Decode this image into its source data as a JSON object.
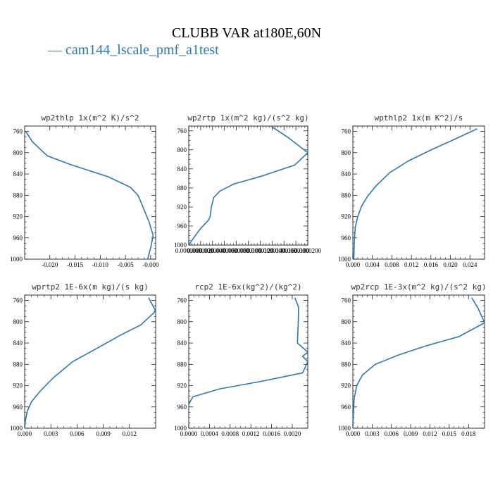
{
  "title": "CLUBB VAR at180E,60N",
  "legend": {
    "label": "— cam144_lscale_pmf_a1test",
    "color": "#2a7ab0"
  },
  "chart_data": [
    {
      "type": "line",
      "title": "wp2thlp   1x(m^2 K)/s^2",
      "xlim": [
        -0.025,
        0.001
      ],
      "ylim": [
        1000,
        750
      ],
      "xticks": [
        -0.02,
        -0.015,
        -0.01,
        -0.005,
        -0.0
      ],
      "xtick_labels": [
        "-0.020",
        "-0.015",
        "-0.010",
        "-0.005",
        "-0.000"
      ],
      "yticks": [
        760,
        800,
        840,
        880,
        920,
        960,
        1000
      ],
      "ytick_labels": [
        "760",
        "800",
        "840",
        "880",
        "920",
        "960",
        "1000"
      ],
      "series": [
        {
          "x": [
            -0.0248,
            -0.0234,
            -0.0205,
            -0.016,
            -0.0085,
            -0.004,
            -0.0025,
            -0.0016,
            -0.0003,
            0.0005,
            0.0001,
            -0.0006
          ],
          "y": [
            760,
            780,
            806,
            822,
            845,
            865,
            880,
            900,
            930,
            955,
            975,
            1000
          ]
        }
      ]
    },
    {
      "type": "line",
      "title": "wp2rtp   1x(m^2 kg)/(s^2 kg)",
      "xlim": [
        0.0,
        2e-05
      ],
      "ylim": [
        1000,
        750
      ],
      "xticks": [
        0.0,
        2e-06,
        4e-06,
        6e-06,
        8e-06,
        1e-05,
        1.2e-05,
        1.4e-05,
        1.6e-05,
        1.8e-05,
        2e-05
      ],
      "xtick_labels": [
        "0.0000000",
        "0.0000020",
        "0.0000040",
        "0.0000060",
        "0.0000080",
        "0.0000100",
        "0.0000120",
        "0.0000140",
        "0.0000160",
        "0.0000180",
        "0.0000200"
      ],
      "yticks": [
        760,
        800,
        840,
        880,
        920,
        960,
        1000
      ],
      "ytick_labels": [
        "760",
        "800",
        "840",
        "880",
        "920",
        "960",
        "1000"
      ],
      "series": [
        {
          "x": [
            1.38e-05,
            1.68e-05,
            2e-05,
            1.78e-05,
            1.2e-05,
            7.5e-06,
            5.2e-06,
            4.2e-06,
            3.8e-06,
            3.6e-06,
            3.3e-06,
            2e-06,
            8e-07,
            0.0
          ],
          "y": [
            750,
            775,
            806,
            832,
            856,
            872,
            887,
            900,
            920,
            940,
            948,
            965,
            985,
            1000
          ]
        }
      ]
    },
    {
      "type": "line",
      "title": "wpthlp2   1x(m K^2)/s",
      "xlim": [
        0.0,
        0.027
      ],
      "ylim": [
        1000,
        750
      ],
      "xticks": [
        0.0,
        0.004,
        0.008,
        0.012,
        0.016,
        0.02,
        0.024
      ],
      "xtick_labels": [
        "0.000",
        "0.004",
        "0.008",
        "0.012",
        "0.016",
        "0.020",
        "0.024"
      ],
      "yticks": [
        760,
        800,
        840,
        880,
        920,
        960,
        1000
      ],
      "ytick_labels": [
        "760",
        "800",
        "840",
        "880",
        "920",
        "960",
        "1000"
      ],
      "series": [
        {
          "x": [
            0.0255,
            0.022,
            0.016,
            0.0115,
            0.0075,
            0.0048,
            0.003,
            0.0018,
            0.001,
            0.0005,
            0.0003,
            0.0002
          ],
          "y": [
            755,
            770,
            795,
            815,
            838,
            862,
            882,
            900,
            920,
            940,
            965,
            1000
          ]
        }
      ]
    },
    {
      "type": "line",
      "title": "wprtp2   1E-6x(m kg)/(s kg)",
      "xlim": [
        0.0,
        0.015
      ],
      "ylim": [
        1000,
        750
      ],
      "xticks": [
        0.0,
        0.003,
        0.006,
        0.009,
        0.012
      ],
      "xtick_labels": [
        "0.000",
        "0.003",
        "0.006",
        "0.009",
        "0.012"
      ],
      "yticks": [
        760,
        800,
        840,
        880,
        920,
        960,
        1000
      ],
      "ytick_labels": [
        "760",
        "800",
        "840",
        "880",
        "920",
        "960",
        "1000"
      ],
      "series": [
        {
          "x": [
            0.0142,
            0.015,
            0.0133,
            0.011,
            0.0085,
            0.0055,
            0.0033,
            0.0018,
            0.0008,
            0.0003,
            0.0001,
            0.0
          ],
          "y": [
            755,
            780,
            806,
            825,
            848,
            875,
            905,
            930,
            950,
            968,
            985,
            1000
          ]
        }
      ]
    },
    {
      "type": "line",
      "title": "rcp2   1E-6x(kg^2)/(kg^2)",
      "xlim": [
        0.0,
        0.0023
      ],
      "ylim": [
        1000,
        750
      ],
      "xticks": [
        0.0,
        0.0004,
        0.0008,
        0.0012,
        0.0016,
        0.002
      ],
      "xtick_labels": [
        "0.0000",
        "0.0004",
        "0.0008",
        "0.0012",
        "0.0016",
        "0.0020"
      ],
      "yticks": [
        760,
        800,
        840,
        880,
        920,
        960,
        1000
      ],
      "ytick_labels": [
        "760",
        "800",
        "840",
        "880",
        "920",
        "960",
        "1000"
      ],
      "series": [
        {
          "x": [
            0.00205,
            0.00212,
            0.00212,
            0.0021,
            0.0023,
            0.0022,
            0.0023,
            0.0022,
            0.0014,
            0.0006,
            8e-05,
            0.0
          ],
          "y": [
            755,
            772,
            790,
            840,
            857,
            865,
            875,
            896,
            912,
            926,
            941,
            955
          ]
        }
      ]
    },
    {
      "type": "line",
      "title": "wp2rcp   1E-3x(m^2 kg)/(s^2 kg)",
      "xlim": [
        0.0,
        0.0205
      ],
      "ylim": [
        1000,
        750
      ],
      "xticks": [
        0.0,
        0.003,
        0.006,
        0.009,
        0.012,
        0.015,
        0.018
      ],
      "xtick_labels": [
        "0.000",
        "0.003",
        "0.006",
        "0.009",
        "0.012",
        "0.015",
        "0.018"
      ],
      "yticks": [
        760,
        800,
        840,
        880,
        920,
        960,
        1000
      ],
      "ytick_labels": [
        "760",
        "800",
        "840",
        "880",
        "920",
        "960",
        "1000"
      ],
      "series": [
        {
          "x": [
            0.0185,
            0.0195,
            0.0205,
            0.0165,
            0.0115,
            0.007,
            0.0035,
            0.0015,
            0.0006,
            0.0002,
            0.0001,
            0.0
          ],
          "y": [
            755,
            775,
            802,
            828,
            845,
            863,
            880,
            900,
            920,
            945,
            970,
            1000
          ]
        }
      ]
    }
  ]
}
